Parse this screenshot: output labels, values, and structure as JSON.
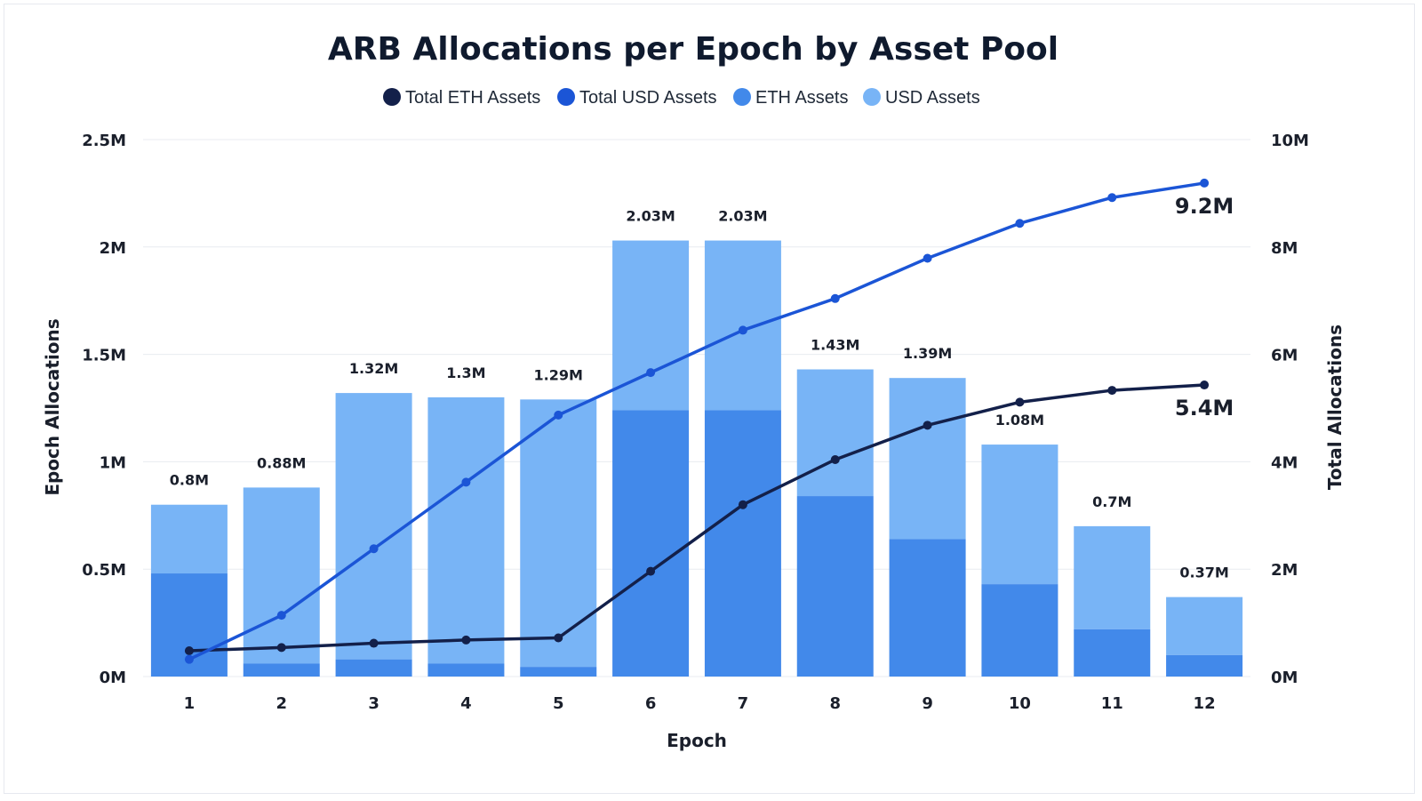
{
  "chart_data": {
    "type": "bar",
    "title": "ARB Allocations per Epoch by Asset Pool",
    "xlabel": "Epoch",
    "ylabel_left": "Epoch Allocations",
    "ylabel_right": "Total Allocations",
    "categories": [
      "1",
      "2",
      "3",
      "4",
      "5",
      "6",
      "7",
      "8",
      "9",
      "10",
      "11",
      "12"
    ],
    "ylim_left": [
      0,
      2.5
    ],
    "ylim_right": [
      0,
      10
    ],
    "yticks_left": [
      "0M",
      "0.5M",
      "1M",
      "1.5M",
      "2M",
      "2.5M"
    ],
    "yticks_right": [
      "0M",
      "2M",
      "4M",
      "6M",
      "8M",
      "10M"
    ],
    "grid": true,
    "legend_position": "top-center",
    "bar_series": [
      {
        "name": "ETH Assets",
        "color": "#4289ea",
        "values": [
          0.48,
          0.06,
          0.08,
          0.06,
          0.045,
          1.24,
          1.24,
          0.84,
          0.64,
          0.43,
          0.22,
          0.1
        ]
      },
      {
        "name": "USD Assets",
        "color": "#78b4f6",
        "values": [
          0.32,
          0.82,
          1.24,
          1.24,
          1.245,
          0.79,
          0.79,
          0.59,
          0.75,
          0.65,
          0.48,
          0.27
        ]
      }
    ],
    "bar_totals": [
      0.8,
      0.88,
      1.32,
      1.3,
      1.29,
      2.03,
      2.03,
      1.43,
      1.39,
      1.08,
      0.7,
      0.37
    ],
    "bar_total_labels": [
      "0.8M",
      "0.88M",
      "1.32M",
      "1.3M",
      "1.29M",
      "2.03M",
      "2.03M",
      "1.43M",
      "1.39M",
      "1.08M",
      "0.7M",
      "0.37M"
    ],
    "line_series": [
      {
        "name": "Total ETH Assets",
        "color": "#13204a",
        "axis": "right",
        "values": [
          0.48,
          0.54,
          0.62,
          0.68,
          0.72,
          1.96,
          3.2,
          4.04,
          4.68,
          5.11,
          5.33,
          5.43
        ],
        "end_label": "5.4M"
      },
      {
        "name": "Total USD Assets",
        "color": "#1b55d6",
        "axis": "right",
        "values": [
          0.32,
          1.14,
          2.38,
          3.62,
          4.87,
          5.66,
          6.45,
          7.04,
          7.79,
          8.44,
          8.92,
          9.19
        ],
        "end_label": "9.2M"
      }
    ],
    "legend": [
      {
        "name": "Total ETH Assets",
        "color": "#13204a"
      },
      {
        "name": "Total USD Assets",
        "color": "#1b55d6"
      },
      {
        "name": "ETH Assets",
        "color": "#4289ea"
      },
      {
        "name": "USD Assets",
        "color": "#78b4f6"
      }
    ]
  }
}
